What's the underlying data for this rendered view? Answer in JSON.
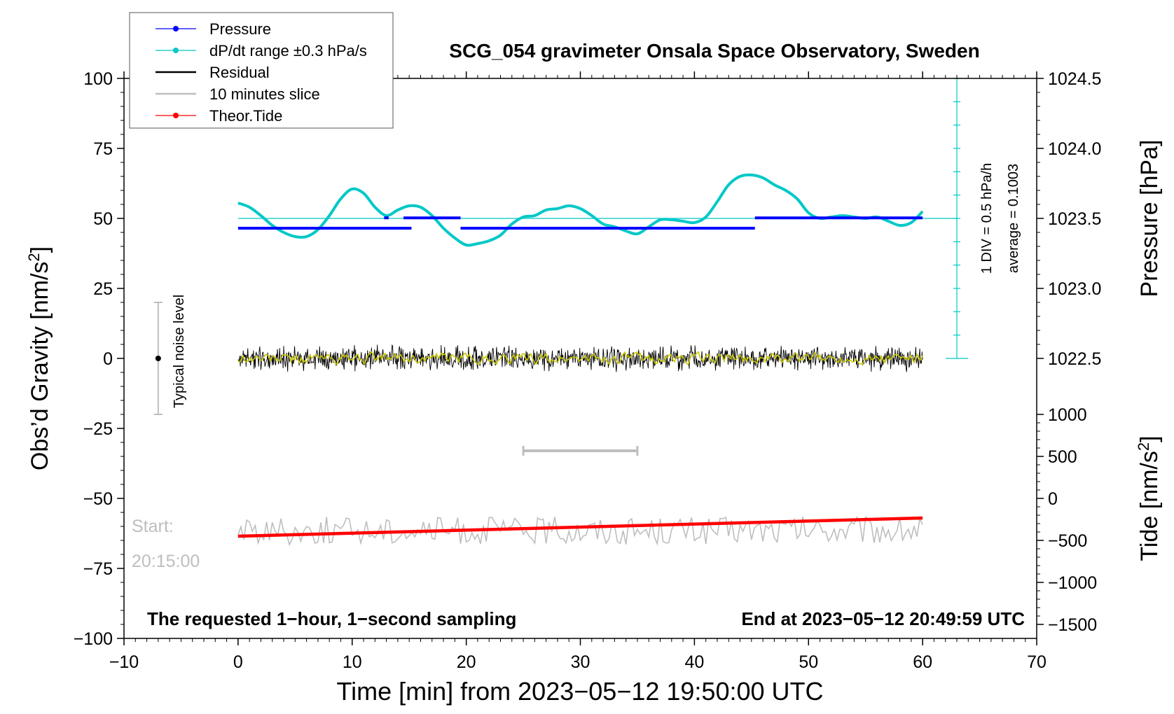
{
  "chart_data": {
    "type": "line",
    "title": "SCG_054 gravimeter Onsala Space Observatory, Sweden",
    "xlabel": "Time [min] from 2023−05−12 19:50:00 UTC",
    "ylabel_left_main": "Obs’d Gravity [nm/s",
    "ylabel_left_sup": "2",
    "ylabel_left_end": "]",
    "ylabel_right_pressure": "Pressure [hPa]",
    "ylabel_right_tide_main": "Tide [nm/s",
    "ylabel_right_tide_sup": "2",
    "ylabel_right_tide_end": "]",
    "xlim": [
      -10,
      70
    ],
    "ylim_left": [
      -100,
      100
    ],
    "x_ticks": [
      -10,
      0,
      10,
      20,
      30,
      40,
      50,
      60,
      70
    ],
    "x_tick_labels": [
      "−10",
      "0",
      "10",
      "20",
      "30",
      "40",
      "50",
      "60",
      "70"
    ],
    "y_ticks_left": [
      -100,
      -75,
      -50,
      -25,
      0,
      25,
      50,
      75,
      100
    ],
    "y_tick_labels_left": [
      "−100",
      "−75",
      "−50",
      "−25",
      "0",
      "25",
      "50",
      "75",
      "100"
    ],
    "pressure_axis": {
      "ticks": [
        1023.0,
        1023.5,
        1024.0,
        1024.5
      ],
      "tick_labels": [
        "1022.5",
        "1023.0",
        "1023.5",
        "1024.0",
        "1024.5"
      ],
      "tick_values": [
        1022.5,
        1023.0,
        1023.5,
        1024.0,
        1024.5
      ],
      "hpa_per_gravity_unit": 0.02
    },
    "tide_axis": {
      "tick_values": [
        1000,
        500,
        0,
        -500,
        -1000,
        -1500
      ],
      "tick_labels": [
        "1000",
        "500",
        "0",
        "−500",
        "−1000",
        "−1500"
      ],
      "gravity_at_zero": -50,
      "gravity_per_tide_unit": 0.03
    },
    "legend": {
      "position": "top-left",
      "entries": [
        {
          "label": "Pressure",
          "color": "#0000ff",
          "marker": true
        },
        {
          "label": "dP/dt range ±0.3 hPa/s",
          "color": "#00c8c8",
          "marker": true
        },
        {
          "label": "Residual",
          "color": "#000000",
          "marker": false
        },
        {
          "label": "10 minutes slice",
          "color": "#bebebe",
          "marker": false
        },
        {
          "label": "Theor.Tide",
          "color": "#ff0000",
          "marker": true
        }
      ]
    },
    "annotations": {
      "noise_label": "Typical noise level",
      "noise_range": [
        -20,
        20
      ],
      "noise_x": -7,
      "scale_div": "1 DIV = 0.5 hPa/h",
      "average": "average = 0.1003",
      "start_label": "Start:",
      "start_time": "20:15:00",
      "bottom_left": "The requested 1−hour, 1−second sampling",
      "bottom_right": "End at 2023−05−12 20:49:59 UTC",
      "slice_bar": [
        25,
        35
      ],
      "slice_bar_y": -33
    },
    "series": [
      {
        "name": "Pressure",
        "color": "#0000ff",
        "segments": [
          {
            "x": [
              0,
              15.2
            ],
            "y": [
              46.5,
              46.5
            ]
          },
          {
            "x": [
              12.8,
              13.2
            ],
            "y": [
              50.2,
              50.2
            ]
          },
          {
            "x": [
              14.5,
              19.5
            ],
            "y": [
              50.2,
              50.2
            ]
          },
          {
            "x": [
              19.5,
              45.3
            ],
            "y": [
              46.5,
              46.5
            ]
          },
          {
            "x": [
              45.3,
              60
            ],
            "y": [
              50.2,
              50.2
            ]
          }
        ]
      },
      {
        "name": "dP/dt range",
        "color": "#00c8c8",
        "reference_y": 50,
        "x": [
          0,
          1,
          2,
          3,
          4,
          5,
          6,
          7,
          8,
          9,
          10,
          11,
          12,
          13,
          14,
          15,
          16,
          17,
          18,
          19,
          20,
          21,
          22,
          23,
          24,
          25,
          26,
          27,
          28,
          29,
          30,
          31,
          32,
          33,
          34,
          35,
          36,
          37,
          38,
          39,
          40,
          41,
          42,
          43,
          44,
          45,
          46,
          47,
          48,
          49,
          50,
          51,
          52,
          53,
          54,
          55,
          56,
          57,
          58,
          59,
          60
        ],
        "y": [
          55.5,
          54,
          51,
          47.5,
          45,
          43.5,
          43.5,
          46,
          51,
          57,
          60.5,
          59,
          54,
          51,
          53,
          54.5,
          54,
          51,
          46.5,
          43,
          40.5,
          41,
          42,
          44,
          48,
          50.5,
          51,
          53,
          53.5,
          54.5,
          53.5,
          51,
          48,
          47,
          45.5,
          44.5,
          47,
          49.5,
          49.5,
          49,
          48.5,
          50.5,
          56,
          62,
          65,
          65.5,
          64.5,
          62,
          60,
          57,
          52,
          50,
          50.5,
          51,
          50.5,
          50,
          50.5,
          49,
          47.5,
          48.5,
          52.5
        ]
      },
      {
        "name": "Residual",
        "color": "#000000",
        "noise_amplitude": 5,
        "x_range": [
          0,
          60
        ],
        "y_center": 0
      },
      {
        "name": "Smoothed residual",
        "color": "#c8c800",
        "noise_amplitude": 1.5,
        "x_range": [
          0,
          60
        ],
        "y_center": 0
      },
      {
        "name": "10 minutes slice",
        "color": "#bebebe",
        "noise_amplitude": 5,
        "x_range": [
          0,
          60
        ],
        "y_center": -61.5
      },
      {
        "name": "Theor.Tide",
        "color": "#ff0000",
        "x": [
          0,
          60
        ],
        "y": [
          -63.5,
          -57
        ]
      }
    ]
  }
}
